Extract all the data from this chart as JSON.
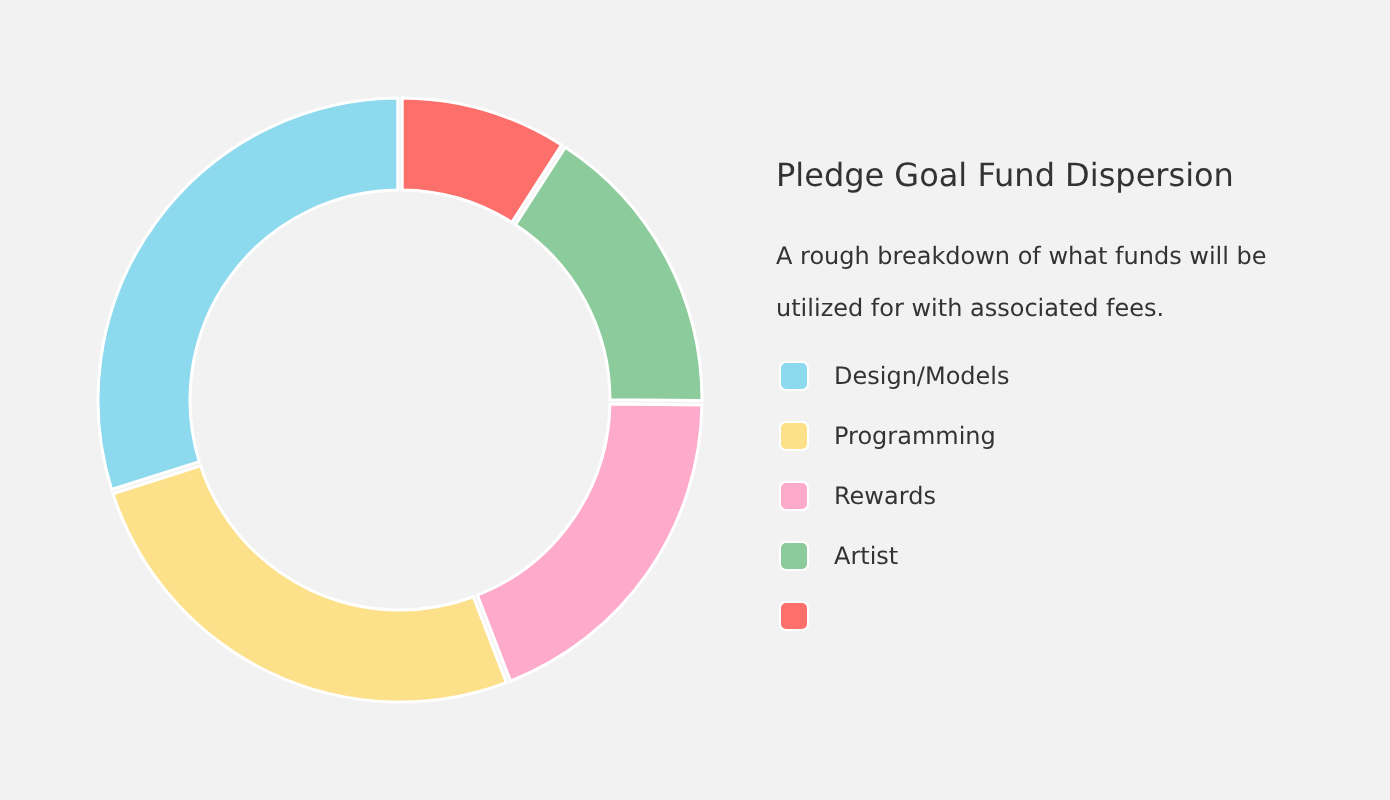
{
  "chart_data": {
    "type": "donut",
    "title": "Pledge Goal Fund Dispersion",
    "subtitle": "A rough breakdown of what funds will be utilized for with associated fees.",
    "categories": [
      null,
      "Artist",
      "Rewards",
      "Programming",
      "Design/Models"
    ],
    "values": [
      9,
      16,
      19,
      26,
      30
    ],
    "colors": [
      "#fc6f6b",
      "#8ccb9c",
      "#fdaacb",
      "#fde08a",
      "#8dd9ee"
    ],
    "legend": "right"
  }
}
